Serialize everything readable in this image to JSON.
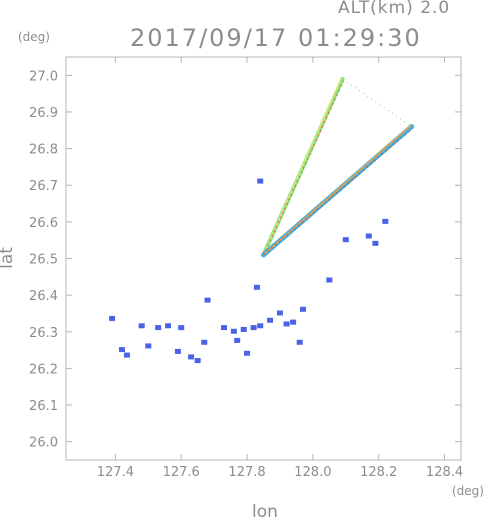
{
  "header": {
    "altitude_label": "ALT(km) 2.0",
    "datetime": "2017/09/17 01:29:30"
  },
  "chart_data": {
    "type": "scatter",
    "title": "2017/09/17 01:29:30",
    "xlabel": "lon",
    "ylabel": "lat",
    "x_unit": "(deg)",
    "y_unit": "(deg)",
    "xlim": [
      127.25,
      128.45
    ],
    "ylim": [
      25.95,
      27.05
    ],
    "x_ticks": [
      127.4,
      127.6,
      127.8,
      128.0,
      128.2,
      128.4
    ],
    "x_tick_labels": [
      "127.4",
      "127.6",
      "127.8",
      "128.0",
      "128.2",
      "128.4"
    ],
    "y_ticks": [
      26.0,
      26.1,
      26.2,
      26.3,
      26.4,
      26.5,
      26.6,
      26.7,
      26.8,
      26.9,
      27.0
    ],
    "y_tick_labels": [
      "26.0",
      "26.1",
      "26.2",
      "26.3",
      "26.4",
      "26.5",
      "26.6",
      "26.7",
      "26.8",
      "26.9",
      "27.0"
    ],
    "grid": false,
    "radar_origin": [
      127.85,
      26.51
    ],
    "beams": [
      {
        "end": [
          128.09,
          26.99
        ],
        "colors": [
          "#7fe07f",
          "#d8e86a"
        ]
      },
      {
        "end": [
          128.3,
          26.86
        ],
        "colors": [
          "#3fb0e0",
          "#f0a040"
        ]
      }
    ],
    "echo_cells": [
      {
        "lon": 127.39,
        "lat": 26.335
      },
      {
        "lon": 127.42,
        "lat": 26.25
      },
      {
        "lon": 127.435,
        "lat": 26.235
      },
      {
        "lon": 127.48,
        "lat": 26.315
      },
      {
        "lon": 127.5,
        "lat": 26.26
      },
      {
        "lon": 127.53,
        "lat": 26.31
      },
      {
        "lon": 127.56,
        "lat": 26.315
      },
      {
        "lon": 127.59,
        "lat": 26.245
      },
      {
        "lon": 127.6,
        "lat": 26.31
      },
      {
        "lon": 127.63,
        "lat": 26.23
      },
      {
        "lon": 127.65,
        "lat": 26.22
      },
      {
        "lon": 127.67,
        "lat": 26.27
      },
      {
        "lon": 127.68,
        "lat": 26.385
      },
      {
        "lon": 127.73,
        "lat": 26.31
      },
      {
        "lon": 127.76,
        "lat": 26.3
      },
      {
        "lon": 127.77,
        "lat": 26.275
      },
      {
        "lon": 127.79,
        "lat": 26.305
      },
      {
        "lon": 127.8,
        "lat": 26.24
      },
      {
        "lon": 127.82,
        "lat": 26.31
      },
      {
        "lon": 127.83,
        "lat": 26.42
      },
      {
        "lon": 127.84,
        "lat": 26.315
      },
      {
        "lon": 127.87,
        "lat": 26.33
      },
      {
        "lon": 127.9,
        "lat": 26.35
      },
      {
        "lon": 127.92,
        "lat": 26.32
      },
      {
        "lon": 127.94,
        "lat": 26.325
      },
      {
        "lon": 127.96,
        "lat": 26.27
      },
      {
        "lon": 127.97,
        "lat": 26.36
      },
      {
        "lon": 128.05,
        "lat": 26.44
      },
      {
        "lon": 128.1,
        "lat": 26.55
      },
      {
        "lon": 128.17,
        "lat": 26.56
      },
      {
        "lon": 128.19,
        "lat": 26.54
      },
      {
        "lon": 128.22,
        "lat": 26.6
      },
      {
        "lon": 127.84,
        "lat": 26.71
      }
    ],
    "echo_color": "#4a62e8"
  }
}
